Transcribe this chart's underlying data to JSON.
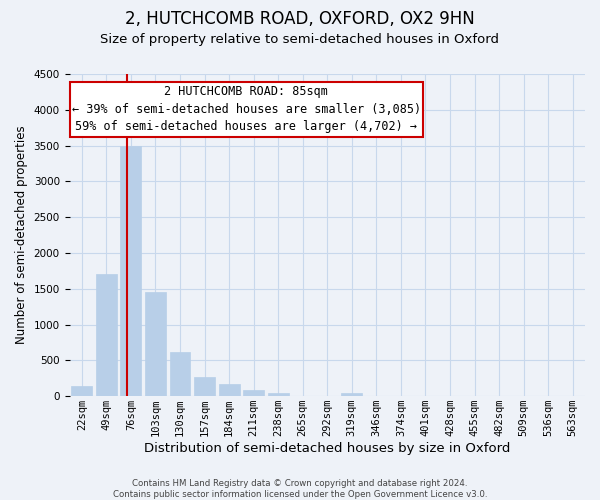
{
  "title": "2, HUTCHCOMB ROAD, OXFORD, OX2 9HN",
  "subtitle": "Size of property relative to semi-detached houses in Oxford",
  "xlabel": "Distribution of semi-detached houses by size in Oxford",
  "ylabel": "Number of semi-detached properties",
  "bar_values": [
    140,
    1700,
    3500,
    1450,
    620,
    270,
    165,
    90,
    40,
    0,
    0,
    40,
    0,
    0,
    0,
    0,
    0,
    0,
    0,
    0,
    0
  ],
  "bar_labels": [
    "22sqm",
    "49sqm",
    "76sqm",
    "103sqm",
    "130sqm",
    "157sqm",
    "184sqm",
    "211sqm",
    "238sqm",
    "265sqm",
    "292sqm",
    "319sqm",
    "346sqm",
    "374sqm",
    "401sqm",
    "428sqm",
    "455sqm",
    "482sqm",
    "509sqm",
    "536sqm",
    "563sqm"
  ],
  "bar_color": "#b8cfe8",
  "bar_edge_color": "#b8cfe8",
  "grid_color": "#c8d8ec",
  "background_color": "#eef2f8",
  "vline_color": "#cc0000",
  "property_label": "2 HUTCHCOMB ROAD: 85sqm",
  "smaller_pct": "39%",
  "smaller_count": "3,085",
  "larger_pct": "59%",
  "larger_count": "4,702",
  "box_edge_color": "#cc0000",
  "annotation_fontsize": 8.5,
  "title_fontsize": 12,
  "subtitle_fontsize": 9.5,
  "xlabel_fontsize": 9.5,
  "ylabel_fontsize": 8.5,
  "tick_fontsize": 7.5,
  "ylim": [
    0,
    4500
  ],
  "footer1": "Contains HM Land Registry data © Crown copyright and database right 2024.",
  "footer2": "Contains public sector information licensed under the Open Government Licence v3.0."
}
